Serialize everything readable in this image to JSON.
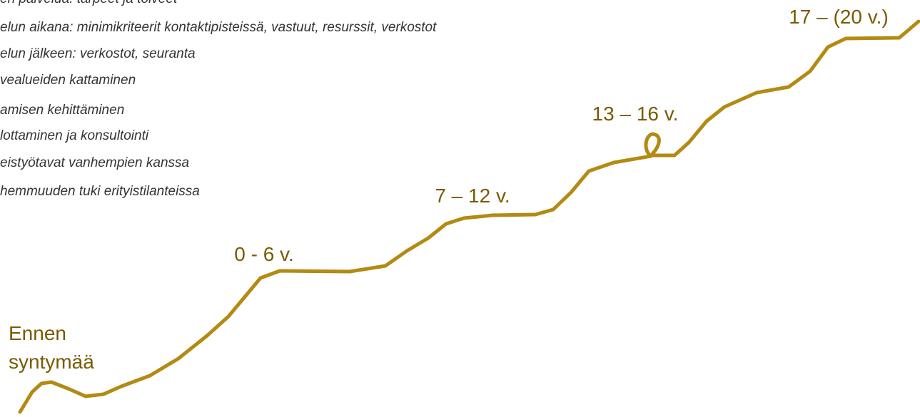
{
  "list": [
    "en palvelua: tarpeet ja toiveet",
    "elun aikana: minimikriteerit kontaktipisteissä, vastuut, resurssit, verkostot",
    "elun jälkeen: verkostot, seuranta",
    "vealueiden kattaminen",
    "amisen kehittäminen",
    "lottaminen ja konsultointi",
    "eistyötavat vanhempien kanssa",
    "hemmuuden tuki erityistilanteissa"
  ],
  "stages": [
    {
      "lines": [
        "Ennen",
        "syntymää"
      ]
    },
    {
      "lines": [
        "0 - 6 v."
      ]
    },
    {
      "lines": [
        "7 – 12 v."
      ]
    },
    {
      "lines": [
        "13 – 16 v."
      ]
    },
    {
      "lines": [
        "17 – (20 v.)"
      ]
    }
  ]
}
